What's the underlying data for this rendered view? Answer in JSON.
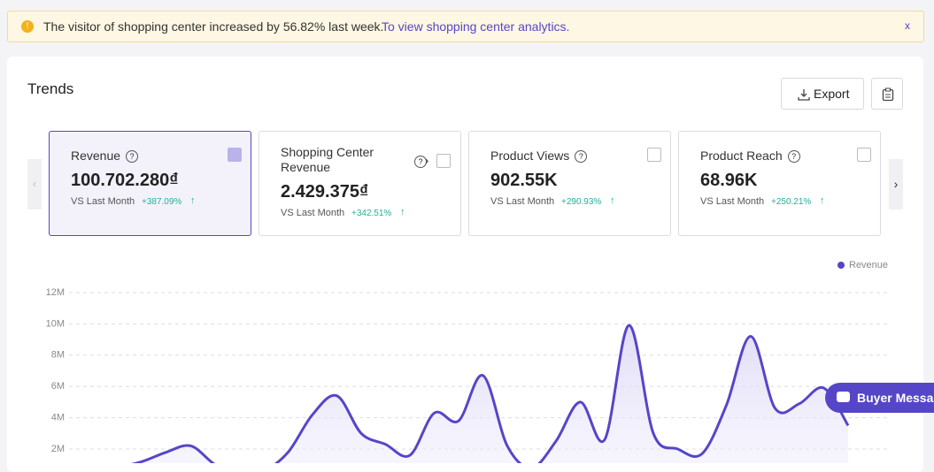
{
  "banner": {
    "message": "The visitor of shopping center increased by 56.82% last week.",
    "link": "To view shopping center analytics.",
    "close": "x"
  },
  "header": {
    "title": "Trends",
    "export": "Export"
  },
  "metrics": [
    {
      "label": "Revenue",
      "value": "100.702.280₫",
      "compare": "VS Last Month",
      "change": "+387.09%",
      "selected": true
    },
    {
      "label": "Shopping Center Revenue",
      "value": "2.429.375₫",
      "compare": "VS Last Month",
      "change": "+342.51%",
      "selected": false
    },
    {
      "label": "Product Views",
      "value": "902.55K",
      "compare": "VS Last Month",
      "change": "+290.93%",
      "selected": false
    },
    {
      "label": "Product Reach",
      "value": "68.96K",
      "compare": "VS Last Month",
      "change": "+250.21%",
      "selected": false
    }
  ],
  "chart_data": {
    "type": "line",
    "series": [
      {
        "name": "Revenue",
        "color": "#5546c8",
        "values": [
          500000,
          300000,
          800000,
          1200000,
          1800000,
          2200000,
          1000000,
          400000,
          600000,
          1800000,
          4200000,
          5400000,
          3000000,
          2300000,
          1600000,
          4300000,
          3800000,
          6700000,
          2200000,
          800000,
          2500000,
          5000000,
          2600000,
          9900000,
          3000000,
          2000000,
          1700000,
          4800000,
          9200000,
          4600000,
          4900000,
          5900000,
          3500000
        ]
      }
    ],
    "ylim": [
      0,
      12000000
    ],
    "yticks": [
      {
        "value": 2000000,
        "label": "2M"
      },
      {
        "value": 4000000,
        "label": "4M"
      },
      {
        "value": 6000000,
        "label": "6M"
      },
      {
        "value": 8000000,
        "label": "8M"
      },
      {
        "value": 10000000,
        "label": "10M"
      },
      {
        "value": 12000000,
        "label": "12M"
      }
    ],
    "grid": true,
    "legend": "top-right"
  },
  "chat": {
    "label": "Buyer Message"
  }
}
